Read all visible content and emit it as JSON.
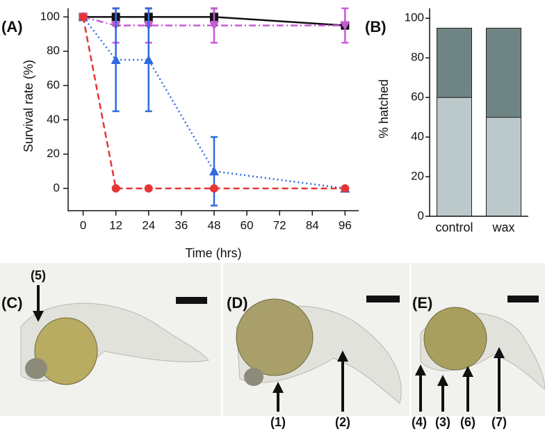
{
  "chart_data": [
    {
      "type": "line",
      "title": "(A)",
      "x_label": "Time (hrs)",
      "y_label": "Survival rate (%)",
      "x": [
        0,
        12,
        24,
        48,
        96
      ],
      "xlim": [
        -5.5,
        101
      ],
      "xticks": [
        0,
        12,
        24,
        36,
        48,
        60,
        72,
        84,
        96
      ],
      "ylim": [
        -13,
        105
      ],
      "yticks": [
        0,
        20,
        40,
        60,
        80,
        100
      ],
      "series": [
        {
          "color": "#111111",
          "marker": "square",
          "dash": "solid",
          "values": [
            100,
            100,
            100,
            100,
            95
          ],
          "errors": [
            0,
            5,
            5,
            5,
            0
          ]
        },
        {
          "color": "#c85ad6",
          "marker": "down-triangle",
          "dash": "dashdot",
          "values": [
            100,
            95,
            95,
            95,
            95
          ],
          "errors": [
            0,
            10,
            10,
            10,
            10
          ]
        },
        {
          "color": "#2e6ae0",
          "marker": "triangle",
          "dash": "dotted",
          "values": [
            100,
            75,
            75,
            10,
            0
          ],
          "errors": [
            0,
            30,
            30,
            20,
            0
          ]
        },
        {
          "color": "#e53535",
          "marker": "circle",
          "dash": "dashed",
          "values": [
            100,
            0,
            0,
            0,
            0
          ],
          "errors": [
            0,
            0,
            0,
            0,
            0
          ]
        }
      ]
    },
    {
      "type": "stacked-bar",
      "title": "(B)",
      "y_label": "% hatched",
      "categories": [
        "control",
        "wax"
      ],
      "ylim": [
        0,
        105
      ],
      "yticks": [
        0,
        20,
        40,
        60,
        80,
        100
      ],
      "series": [
        {
          "color": "#bcc9cb",
          "values": [
            60,
            50
          ]
        },
        {
          "color": "#6f8584",
          "values": [
            35,
            45
          ]
        }
      ]
    }
  ],
  "photos": [
    {
      "label": "(C)",
      "arrows": [
        "(5)"
      ]
    },
    {
      "label": "(D)",
      "arrows": [
        "(1)",
        "(2)"
      ]
    },
    {
      "label": "(E)",
      "arrows": [
        "(4)",
        "(3)",
        "(6)",
        "(7)"
      ]
    }
  ]
}
